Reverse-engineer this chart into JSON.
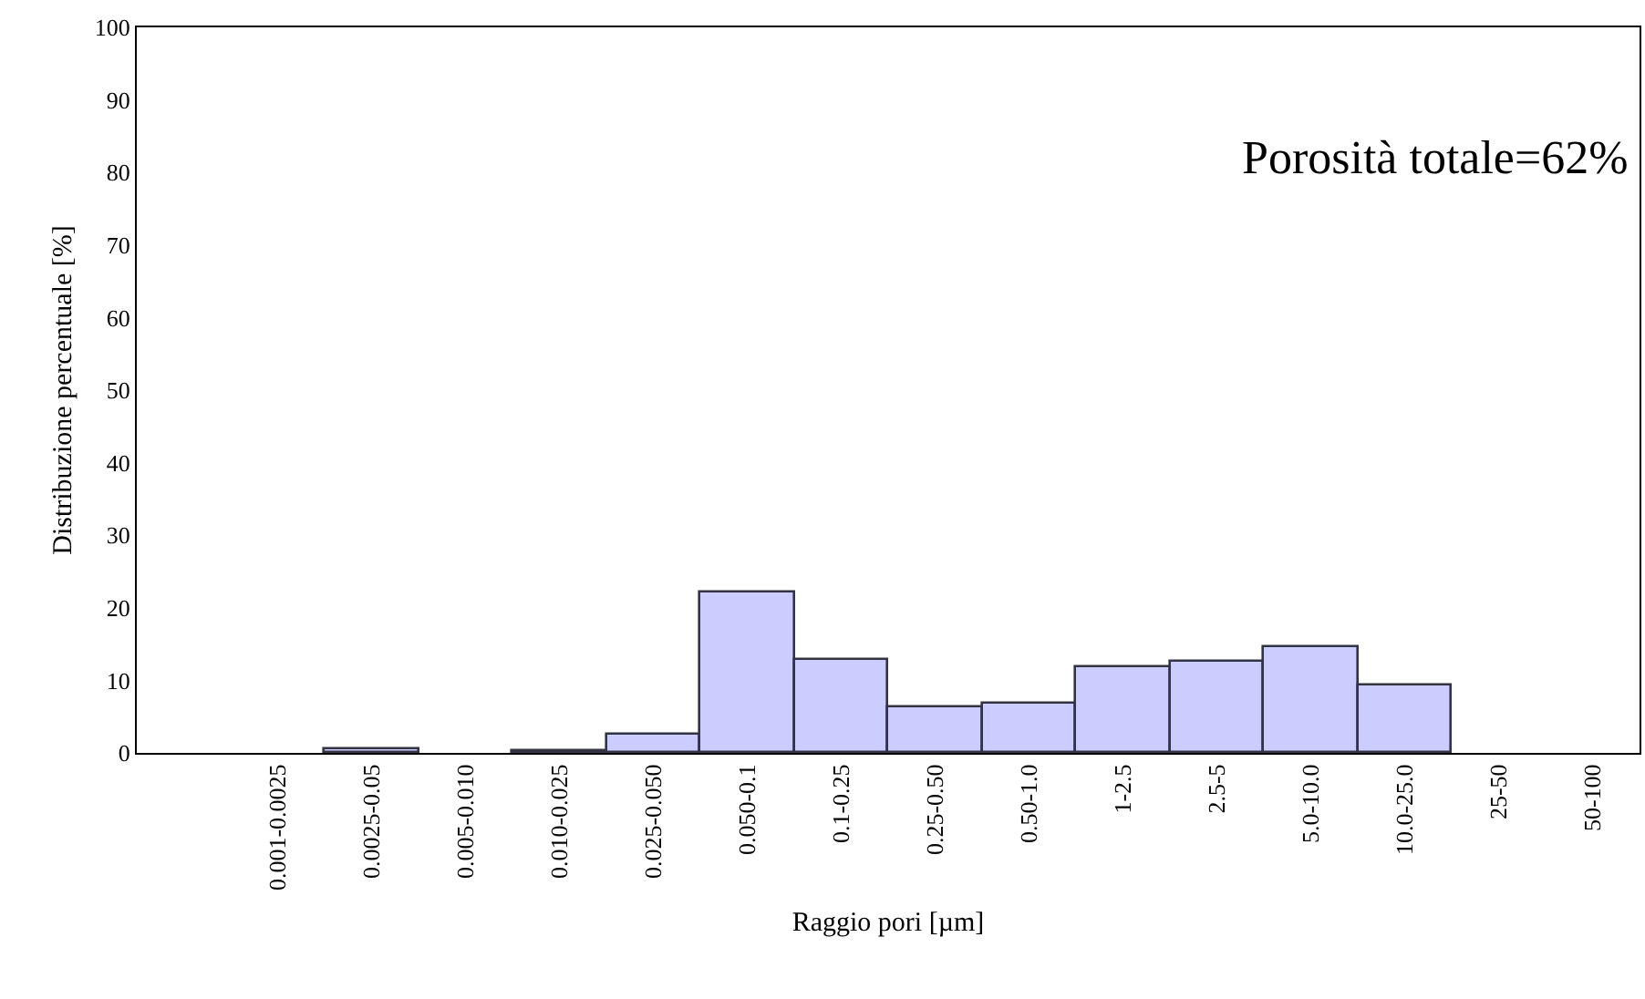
{
  "chart_data": {
    "type": "bar",
    "categories": [
      "0.001-0.0025",
      "0.0025-0.05",
      "0.005-0.010",
      "0.010-0.025",
      "0.025-0.050",
      "0.050-0.1",
      "0.1-0.25",
      "0.25-0.50",
      "0.50-1.0",
      "1-2.5",
      "2.5-5",
      "5.0-10.0",
      "10.0-25.0",
      "25-50",
      "50-100"
    ],
    "values": [
      0,
      0.4,
      0,
      0.2,
      2.5,
      22,
      12.7,
      6.4,
      6.8,
      11.7,
      12.5,
      14.6,
      9.3,
      0,
      0
    ],
    "color": "#ccccff",
    "xlabel": "Raggio pori [µm]",
    "ylabel": "Distribuzione percentuale [%]",
    "ylim": [
      0,
      100
    ],
    "yticks": [
      0,
      10,
      20,
      30,
      40,
      50,
      60,
      70,
      80,
      90,
      100
    ],
    "annotations": [
      "Porosità totale=62%"
    ],
    "legend": false
  }
}
